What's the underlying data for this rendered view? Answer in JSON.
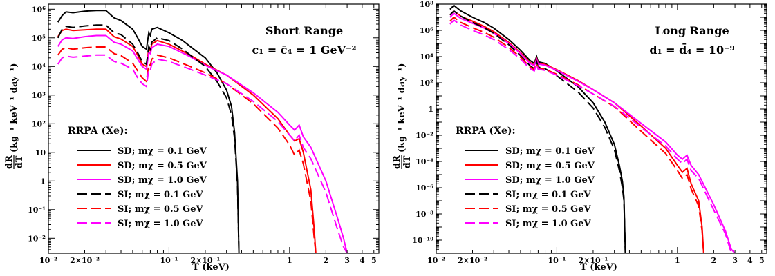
{
  "chart_data": [
    {
      "type": "line",
      "panel": "left",
      "xscale": "log",
      "yscale": "log",
      "xlim": [
        0.01,
        5.5
      ],
      "ylim": [
        0.003,
        1500000
      ],
      "xlabel": "T (keV)",
      "ylabel_top": "dR",
      "ylabel_bottom": "dT",
      "ylabel_units": "(kg⁻¹ keV⁻¹ day⁻¹)",
      "annotation_line1": "Short Range",
      "annotation_line2": "c₁ =  c̄₄ =  1 GeV⁻²",
      "legend_title": "RRPA (Xe):",
      "legend_placement": "lower-left",
      "x_ticks": [
        {
          "value": 0.01,
          "label": "10⁻²"
        },
        {
          "value": 0.02,
          "label": "2×10⁻²"
        },
        {
          "value": 0.1,
          "label": "10⁻¹"
        },
        {
          "value": 0.2,
          "label": "2×10⁻¹"
        },
        {
          "value": 1,
          "label": "1"
        },
        {
          "value": 2,
          "label": "2"
        },
        {
          "value": 3,
          "label": "3"
        },
        {
          "value": 4,
          "label": "4"
        },
        {
          "value": 5,
          "label": "5"
        }
      ],
      "y_ticks": [
        {
          "value": 0.01,
          "label": "10⁻²"
        },
        {
          "value": 0.1,
          "label": "10⁻¹"
        },
        {
          "value": 1,
          "label": "1"
        },
        {
          "value": 10,
          "label": "10"
        },
        {
          "value": 100,
          "label": "10²"
        },
        {
          "value": 1000,
          "label": "10³"
        },
        {
          "value": 10000,
          "label": "10⁴"
        },
        {
          "value": 100000,
          "label": "10⁵"
        },
        {
          "value": 1000000,
          "label": "10⁶"
        }
      ],
      "series": [
        {
          "name": "SD; m_χ = 0.1 GeV",
          "color": "#000000",
          "dash": "solid",
          "x": [
            0.012,
            0.013,
            0.014,
            0.016,
            0.02,
            0.025,
            0.03,
            0.035,
            0.04,
            0.05,
            0.055,
            0.06,
            0.065,
            0.068,
            0.07,
            0.072,
            0.08,
            0.1,
            0.13,
            0.15,
            0.2,
            0.25,
            0.3,
            0.33,
            0.35,
            0.37,
            0.38
          ],
          "y": [
            350000,
            600000,
            800000,
            750000,
            850000,
            900000,
            900000,
            500000,
            400000,
            200000,
            100000,
            50000,
            40000,
            150000,
            120000,
            200000,
            230000,
            150000,
            80000,
            50000,
            20000,
            6000,
            1500,
            400,
            50,
            1,
            0.003
          ]
        },
        {
          "name": "SD; m_χ = 0.5 GeV",
          "color": "#ff0000",
          "dash": "solid",
          "x": [
            0.012,
            0.013,
            0.014,
            0.016,
            0.02,
            0.025,
            0.03,
            0.035,
            0.04,
            0.05,
            0.055,
            0.06,
            0.065,
            0.068,
            0.07,
            0.072,
            0.08,
            0.1,
            0.15,
            0.2,
            0.3,
            0.5,
            0.8,
            1.0,
            1.1,
            1.2,
            1.3,
            1.5,
            1.6,
            1.65
          ],
          "y": [
            110000,
            180000,
            200000,
            180000,
            190000,
            200000,
            200000,
            110000,
            90000,
            50000,
            25000,
            12000,
            10000,
            40000,
            35000,
            60000,
            80000,
            60000,
            25000,
            12000,
            5000,
            1000,
            150,
            40,
            25,
            30,
            10,
            0.5,
            0.02,
            0.003
          ]
        },
        {
          "name": "SD; m_χ = 1.0 GeV",
          "color": "#ff00ff",
          "dash": "solid",
          "x": [
            0.012,
            0.013,
            0.014,
            0.016,
            0.02,
            0.025,
            0.03,
            0.035,
            0.04,
            0.05,
            0.055,
            0.06,
            0.065,
            0.068,
            0.07,
            0.072,
            0.08,
            0.1,
            0.15,
            0.2,
            0.3,
            0.5,
            0.8,
            1.0,
            1.1,
            1.2,
            1.3,
            1.5,
            2.0,
            2.5,
            2.8,
            3.0
          ],
          "y": [
            50000,
            85000,
            100000,
            95000,
            110000,
            120000,
            120000,
            70000,
            60000,
            35000,
            18000,
            10000,
            8000,
            30000,
            28000,
            45000,
            60000,
            50000,
            22000,
            11000,
            5000,
            1200,
            250,
            90,
            60,
            90,
            35,
            15,
            1,
            0.05,
            0.01,
            0.003
          ]
        },
        {
          "name": "SI; m_χ = 0.1 GeV",
          "color": "#000000",
          "dash": "long",
          "x": [
            0.012,
            0.013,
            0.014,
            0.016,
            0.02,
            0.025,
            0.03,
            0.035,
            0.04,
            0.05,
            0.055,
            0.06,
            0.065,
            0.068,
            0.07,
            0.072,
            0.08,
            0.1,
            0.13,
            0.15,
            0.2,
            0.25,
            0.3,
            0.33,
            0.35,
            0.37,
            0.38
          ],
          "y": [
            100000,
            200000,
            250000,
            230000,
            260000,
            280000,
            280000,
            150000,
            130000,
            60000,
            30000,
            15000,
            12000,
            50000,
            40000,
            70000,
            100000,
            80000,
            40000,
            25000,
            10000,
            3000,
            800,
            200,
            30,
            0.7,
            0.003
          ]
        },
        {
          "name": "SI; m_χ = 0.5 GeV",
          "color": "#ff0000",
          "dash": "long",
          "x": [
            0.012,
            0.013,
            0.014,
            0.016,
            0.02,
            0.025,
            0.03,
            0.035,
            0.04,
            0.05,
            0.055,
            0.06,
            0.065,
            0.068,
            0.07,
            0.072,
            0.08,
            0.1,
            0.15,
            0.2,
            0.3,
            0.5,
            0.8,
            1.0,
            1.1,
            1.2,
            1.3,
            1.5,
            1.6,
            1.65
          ],
          "y": [
            25000,
            40000,
            45000,
            40000,
            45000,
            48000,
            48000,
            28000,
            24000,
            13000,
            7000,
            4000,
            3000,
            12000,
            11000,
            18000,
            25000,
            20000,
            10000,
            6000,
            2500,
            500,
            70,
            18,
            8,
            12,
            4,
            0.2,
            0.01,
            0.003
          ]
        },
        {
          "name": "SI; m_χ = 1.0 GeV",
          "color": "#ff00ff",
          "dash": "long",
          "x": [
            0.012,
            0.013,
            0.014,
            0.016,
            0.02,
            0.025,
            0.03,
            0.035,
            0.04,
            0.05,
            0.055,
            0.06,
            0.065,
            0.068,
            0.07,
            0.072,
            0.08,
            0.1,
            0.15,
            0.2,
            0.3,
            0.5,
            0.8,
            1.0,
            1.1,
            1.2,
            1.3,
            1.5,
            2.0,
            2.5,
            2.8,
            3.0
          ],
          "y": [
            12000,
            20000,
            23000,
            21000,
            23000,
            25000,
            25000,
            15000,
            13000,
            8000,
            4000,
            2500,
            2000,
            8000,
            7500,
            12000,
            18000,
            15000,
            8000,
            5000,
            2500,
            600,
            120,
            40,
            25,
            40,
            15,
            6,
            0.4,
            0.02,
            0.005,
            0.003
          ]
        }
      ]
    },
    {
      "type": "line",
      "panel": "right",
      "xscale": "log",
      "yscale": "log",
      "xlim": [
        0.01,
        5.5
      ],
      "ylim": [
        1e-11,
        100000000.0
      ],
      "xlabel": "T (keV)",
      "ylabel_top": "dR",
      "ylabel_bottom": "dT",
      "ylabel_units": "(kg⁻¹ keV⁻¹ day⁻¹)",
      "annotation_line1": "Long Range",
      "annotation_line2": "d₁ =  d̄₄ =  10⁻⁹",
      "legend_title": "RRPA (Xe):",
      "legend_placement": "lower-left",
      "x_ticks": [
        {
          "value": 0.01,
          "label": "10⁻²"
        },
        {
          "value": 0.02,
          "label": "2×10⁻²"
        },
        {
          "value": 0.1,
          "label": "10⁻¹"
        },
        {
          "value": 0.2,
          "label": "2×10⁻¹"
        },
        {
          "value": 1,
          "label": "1"
        },
        {
          "value": 2,
          "label": "2"
        },
        {
          "value": 3,
          "label": "3"
        },
        {
          "value": 4,
          "label": "4"
        },
        {
          "value": 5,
          "label": "5"
        }
      ],
      "y_ticks": [
        {
          "value": 1e-10,
          "label": "10⁻¹⁰"
        },
        {
          "value": 1e-08,
          "label": "10⁻⁸"
        },
        {
          "value": 1e-06,
          "label": "10⁻⁶"
        },
        {
          "value": 0.0001,
          "label": "10⁻⁴"
        },
        {
          "value": 0.01,
          "label": "10⁻²"
        },
        {
          "value": 1,
          "label": "1"
        },
        {
          "value": 100,
          "label": "10²"
        },
        {
          "value": 10000,
          "label": "10⁴"
        },
        {
          "value": 1000000,
          "label": "10⁶"
        },
        {
          "value": 100000000,
          "label": "10⁸"
        }
      ],
      "series": [
        {
          "name": "SD; m_χ = 0.1 GeV",
          "color": "#000000",
          "dash": "solid",
          "x": [
            0.013,
            0.014,
            0.016,
            0.02,
            0.025,
            0.03,
            0.04,
            0.05,
            0.06,
            0.065,
            0.068,
            0.07,
            0.08,
            0.1,
            0.15,
            0.2,
            0.25,
            0.3,
            0.33,
            0.35,
            0.36,
            0.37
          ],
          "y": [
            40000000,
            80000000,
            30000000,
            10000000,
            4000000,
            1500000,
            200000,
            30000,
            5000,
            3000,
            10000,
            4000,
            3000,
            800,
            50,
            3,
            0.1,
            0.002,
            5e-05,
            3e-06,
            2e-07,
            1e-11
          ]
        },
        {
          "name": "SD; m_χ = 0.5 GeV",
          "color": "#ff0000",
          "dash": "solid",
          "x": [
            0.013,
            0.014,
            0.016,
            0.02,
            0.025,
            0.03,
            0.04,
            0.05,
            0.06,
            0.065,
            0.068,
            0.07,
            0.08,
            0.1,
            0.15,
            0.2,
            0.3,
            0.5,
            0.8,
            1.0,
            1.1,
            1.2,
            1.3,
            1.5,
            1.6,
            1.65
          ],
          "y": [
            15000000,
            30000000,
            12000000,
            5000000,
            2000000,
            800000,
            120000,
            20000,
            3500,
            2200,
            7000,
            3000,
            2500,
            1000,
            150,
            30,
            3,
            0.05,
            0.001,
            5e-05,
            1.5e-05,
            3e-05,
            2e-06,
            1e-07,
            1e-09,
            1e-11
          ]
        },
        {
          "name": "SD; m_χ = 1.0 GeV",
          "color": "#ff00ff",
          "dash": "solid",
          "x": [
            0.013,
            0.014,
            0.016,
            0.02,
            0.025,
            0.03,
            0.04,
            0.05,
            0.06,
            0.065,
            0.068,
            0.07,
            0.08,
            0.1,
            0.15,
            0.2,
            0.3,
            0.5,
            0.8,
            1.0,
            1.1,
            1.2,
            1.3,
            1.5,
            2.0,
            2.5,
            2.8,
            3.0
          ],
          "y": [
            10000000,
            20000000,
            8000000,
            3500000,
            1500000,
            600000,
            100000,
            17000,
            3000,
            2000,
            6000,
            2700,
            2200,
            900,
            130,
            30,
            3,
            0.08,
            0.003,
            0.0003,
            0.00015,
            0.0003,
            5e-05,
            1e-05,
            5e-08,
            5e-10,
            2e-11,
            1e-11
          ]
        },
        {
          "name": "SI; m_χ = 0.1 GeV",
          "color": "#000000",
          "dash": "long",
          "x": [
            0.013,
            0.014,
            0.016,
            0.02,
            0.025,
            0.03,
            0.04,
            0.05,
            0.06,
            0.065,
            0.068,
            0.07,
            0.08,
            0.1,
            0.15,
            0.2,
            0.25,
            0.3,
            0.33,
            0.35,
            0.36,
            0.37
          ],
          "y": [
            15000000,
            30000000,
            12000000,
            4000000,
            1600000,
            600000,
            80000,
            12000,
            2000,
            1200,
            4000,
            1600,
            1200,
            350,
            20,
            1.2,
            0.04,
            0.0008,
            2e-05,
            1e-06,
            1e-07,
            1e-11
          ]
        },
        {
          "name": "SI; m_χ = 0.5 GeV",
          "color": "#ff0000",
          "dash": "long",
          "x": [
            0.013,
            0.014,
            0.016,
            0.02,
            0.025,
            0.03,
            0.04,
            0.05,
            0.06,
            0.065,
            0.068,
            0.07,
            0.08,
            0.1,
            0.15,
            0.2,
            0.3,
            0.5,
            0.8,
            1.0,
            1.1,
            1.2,
            1.3,
            1.5,
            1.6,
            1.65
          ],
          "y": [
            5000000,
            10000000,
            4000000,
            1600000,
            700000,
            300000,
            50000,
            9000,
            1600,
            1000,
            3000,
            1300,
            1100,
            450,
            70,
            14,
            1.5,
            0.02,
            0.0004,
            2e-05,
            5e-06,
            1e-05,
            8e-07,
            4e-08,
            5e-10,
            1e-11
          ]
        },
        {
          "name": "SI; m_χ = 1.0 GeV",
          "color": "#ff00ff",
          "dash": "long",
          "x": [
            0.013,
            0.014,
            0.016,
            0.02,
            0.025,
            0.03,
            0.04,
            0.05,
            0.06,
            0.065,
            0.068,
            0.07,
            0.08,
            0.1,
            0.15,
            0.2,
            0.3,
            0.5,
            0.8,
            1.0,
            1.1,
            1.2,
            1.3,
            1.5,
            2.0,
            2.5,
            2.8,
            3.0
          ],
          "y": [
            3000000,
            6000000,
            2500000,
            1000000,
            450000,
            200000,
            35000,
            6500,
            1200,
            800,
            2500,
            1100,
            900,
            380,
            60,
            14,
            1.6,
            0.04,
            0.0015,
            0.00015,
            7e-05,
            0.00015,
            2e-05,
            5e-06,
            2e-08,
            3e-10,
            1e-11,
            1e-11
          ]
        }
      ]
    }
  ]
}
